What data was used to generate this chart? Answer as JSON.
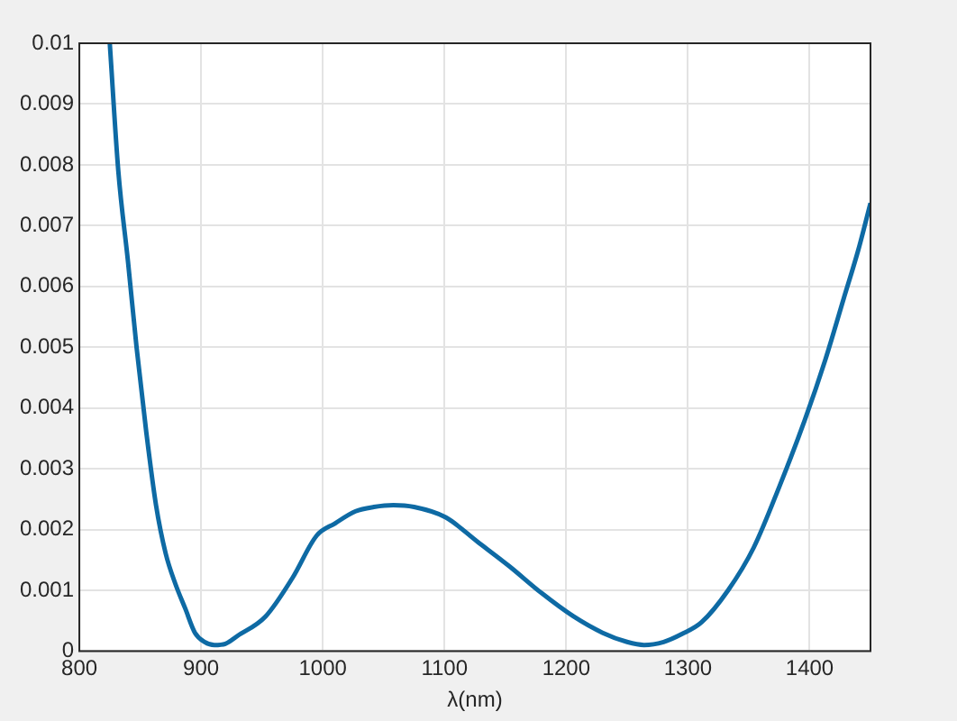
{
  "chart_data": {
    "type": "line",
    "xlabel": "λ(nm)",
    "series": [
      {
        "color": "#0e6aa4",
        "x": [
          825,
          832,
          840,
          847,
          855,
          863,
          871,
          879,
          887,
          895,
          903,
          911,
          920,
          930,
          953,
          975,
          995,
          1010,
          1027,
          1042,
          1058,
          1075,
          1101,
          1127,
          1153,
          1180,
          1206,
          1230,
          1250,
          1264,
          1280,
          1295,
          1311,
          1333,
          1354,
          1375,
          1396,
          1413,
          1428,
          1440,
          1450
        ],
        "values": [
          0.01,
          0.0079,
          0.0064,
          0.005,
          0.0036,
          0.0024,
          0.0016,
          0.0011,
          0.0007,
          0.0003,
          0.00015,
          0.0001,
          0.00012,
          0.00025,
          0.00057,
          0.0012,
          0.0019,
          0.0021,
          0.0023,
          0.00237,
          0.0024,
          0.00237,
          0.0022,
          0.0018,
          0.0014,
          0.00095,
          0.00057,
          0.0003,
          0.00015,
          0.0001,
          0.00015,
          0.00028,
          0.00047,
          0.001,
          0.0017,
          0.0027,
          0.0038,
          0.0048,
          0.0058,
          0.0066,
          0.00737
        ]
      }
    ],
    "xlim": [
      800,
      1450
    ],
    "xticks": [
      800,
      900,
      1000,
      1100,
      1200,
      1300,
      1400
    ],
    "ylim": [
      0,
      0.01
    ],
    "yticks": [
      0,
      0.001,
      0.002,
      0.003,
      0.004,
      0.005,
      0.006,
      0.007,
      0.008,
      0.009,
      0.01
    ],
    "grid": true,
    "legend": false,
    "marker": "none",
    "line_style": "solid"
  }
}
